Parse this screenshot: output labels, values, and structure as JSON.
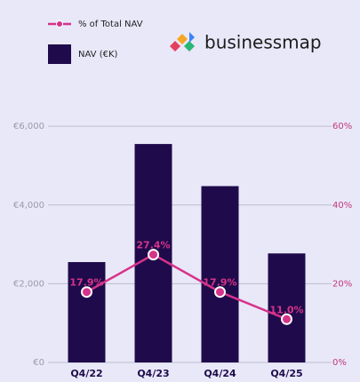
{
  "chart_data": {
    "type": "bar",
    "logo_text": "businessmap",
    "categories": [
      "Q4/22",
      "Q4/23",
      "Q4/24",
      "Q4/25"
    ],
    "series": [
      {
        "name": "NAV (€K)",
        "type": "bar",
        "color": "#1f0b4b",
        "values": [
          2550,
          5550,
          4480,
          2770
        ]
      },
      {
        "name": "% of Total NAV",
        "type": "line",
        "axis": "y2",
        "color": "#d6338a",
        "values": [
          17.9,
          27.4,
          17.9,
          11.0
        ],
        "value_labels": [
          "17.9%",
          "27.4%",
          "17.9%",
          "11.0%"
        ]
      }
    ],
    "ylim": [
      0,
      6500
    ],
    "yticks": [
      {
        "value": 0,
        "label": "€0"
      },
      {
        "value": 2000,
        "label": "€2,000"
      },
      {
        "value": 4000,
        "label": "€4,000"
      },
      {
        "value": 6000,
        "label": "€6,000"
      }
    ],
    "y2lim": [
      0,
      65
    ],
    "y2ticks": [
      {
        "value": 0,
        "label": "0%"
      },
      {
        "value": 20,
        "label": "20%"
      },
      {
        "value": 40,
        "label": "40%"
      },
      {
        "value": 60,
        "label": "60%"
      }
    ],
    "grid": true,
    "legend": "top-left"
  }
}
